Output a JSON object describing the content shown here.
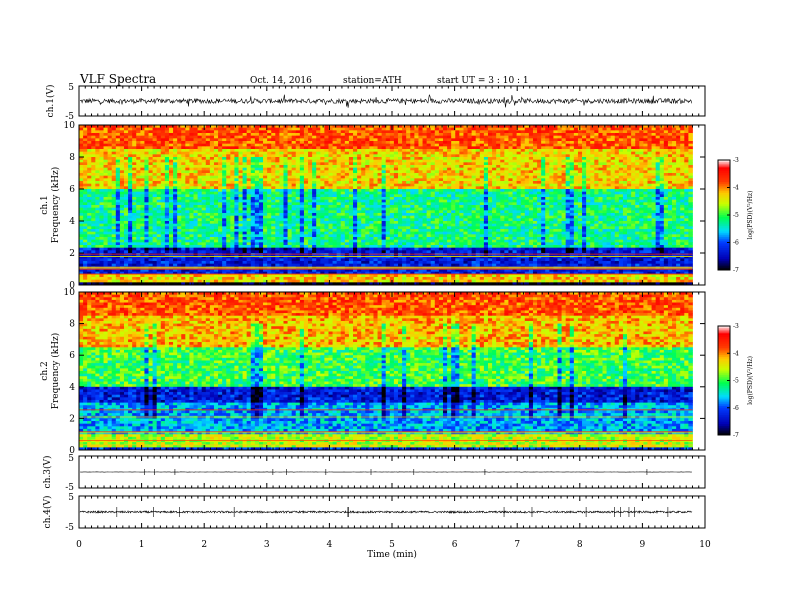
{
  "header": {
    "title": "VLF Spectra",
    "date": "Oct. 14, 2016",
    "station": "station=ATH",
    "start": "start UT =  3 : 10 : 1"
  },
  "chart_data": [
    {
      "type": "line",
      "panel": "ch1-waveform",
      "ylabel": "ch.1(V)",
      "ylim": [
        -5,
        5
      ],
      "yticks": [
        "5",
        "-5"
      ],
      "mean": 0,
      "amplitude_typical": 0.8,
      "amplitude_spikes": 2.3
    },
    {
      "type": "heatmap",
      "panel": "ch1-spectrogram",
      "ylabel": "ch.1 Frequency (kHz)",
      "ylim": [
        0,
        10
      ],
      "yticks": [
        "0",
        "2",
        "4",
        "6",
        "8",
        "10"
      ],
      "colorbar": {
        "label": "log(PSD)(V²/Hz)",
        "ticks": [
          "-3",
          "-4",
          "-5",
          "-6",
          "-7"
        ],
        "range": [
          -7,
          -3
        ],
        "colors": [
          "#000000",
          "#0000cc",
          "#00ffff",
          "#00ff00",
          "#ffff00",
          "#ff8800",
          "#ff0000",
          "#ffffff"
        ]
      },
      "bands_log_psd": [
        {
          "from_khz": 0,
          "to_khz": 0.25,
          "value": -7
        },
        {
          "from_khz": 0.25,
          "to_khz": 0.6,
          "value": -4.3
        },
        {
          "from_khz": 0.6,
          "to_khz": 2.3,
          "value": -6.3
        },
        {
          "from_khz": 2.3,
          "to_khz": 6,
          "value": -5.2
        },
        {
          "from_khz": 6,
          "to_khz": 8.5,
          "value": -4.3
        },
        {
          "from_khz": 8.5,
          "to_khz": 10,
          "value": -3.8
        }
      ]
    },
    {
      "type": "heatmap",
      "panel": "ch2-spectrogram",
      "ylabel": "ch.2 Frequency (kHz)",
      "ylim": [
        0,
        10
      ],
      "yticks": [
        "0",
        "2",
        "4",
        "6",
        "8",
        "10"
      ],
      "colorbar": {
        "label": "log(PSD)(V²/Hz)",
        "ticks": [
          "-3",
          "-4",
          "-5",
          "-6",
          "-7"
        ],
        "range": [
          -7,
          -3
        ]
      },
      "bands_log_psd": [
        {
          "from_khz": 0,
          "to_khz": 0.2,
          "value": -6.2
        },
        {
          "from_khz": 0.2,
          "to_khz": 1.0,
          "value": -4.6
        },
        {
          "from_khz": 1.0,
          "to_khz": 3.0,
          "value": -5.7
        },
        {
          "from_khz": 3.0,
          "to_khz": 4.0,
          "value": -6.3
        },
        {
          "from_khz": 4.0,
          "to_khz": 6.5,
          "value": -5.0
        },
        {
          "from_khz": 6.5,
          "to_khz": 8.5,
          "value": -4.2
        },
        {
          "from_khz": 8.5,
          "to_khz": 10,
          "value": -3.8
        }
      ]
    },
    {
      "type": "line",
      "panel": "ch3-waveform",
      "ylabel": "ch.3(V)",
      "ylim": [
        -5,
        5
      ],
      "yticks": [
        "5",
        "-5"
      ],
      "mean": 0,
      "amplitude_typical": 0.05
    },
    {
      "type": "line",
      "panel": "ch4-waveform",
      "ylabel": "ch.4(V)",
      "ylim": [
        -5,
        5
      ],
      "yticks": [
        "5",
        "-5"
      ],
      "mean": 0,
      "amplitude_typical": 0.3
    }
  ],
  "xaxis": {
    "label": "Time (min)",
    "ticks": [
      "0",
      "1",
      "2",
      "3",
      "4",
      "5",
      "6",
      "7",
      "8",
      "9",
      "10"
    ],
    "range": [
      0,
      10
    ],
    "data_end_min": 9.8
  }
}
